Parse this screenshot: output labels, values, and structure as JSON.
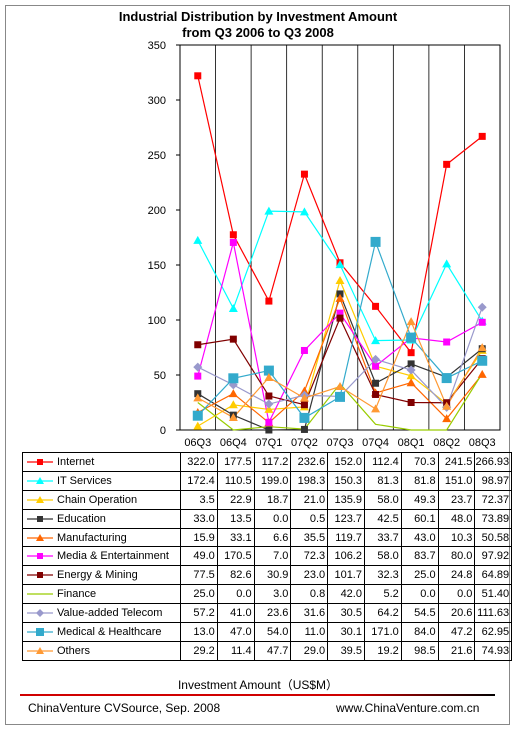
{
  "chart_data": {
    "type": "line",
    "title_line1": "Industrial Distribution by Investment Amount",
    "title_line2": "from Q3 2006 to Q3 2008",
    "categories": [
      "06Q3",
      "06Q4",
      "07Q1",
      "07Q2",
      "07Q3",
      "07Q4",
      "08Q1",
      "08Q2",
      "08Q3"
    ],
    "ylim": [
      0,
      350
    ],
    "yticks": [
      "0",
      "50",
      "100",
      "150",
      "200",
      "250",
      "300",
      "350"
    ],
    "xlabel": "Investment Amount（US$M）",
    "grid": "vertical",
    "legend": "data-table",
    "series": [
      {
        "name": "Internet",
        "color": "#ff0000",
        "marker": "square",
        "values": [
          322.0,
          177.5,
          117.2,
          232.6,
          152.0,
          112.4,
          70.3,
          241.5,
          266.93
        ],
        "labels": [
          "322.0",
          "177.5",
          "117.2",
          "232.6",
          "152.0",
          "112.4",
          "70.3",
          "241.5",
          "266.93"
        ]
      },
      {
        "name": "IT Services",
        "color": "#00ffff",
        "marker": "triangle",
        "values": [
          172.4,
          110.5,
          199.0,
          198.3,
          150.3,
          81.3,
          81.8,
          151.0,
          98.97
        ],
        "labels": [
          "172.4",
          "110.5",
          "199.0",
          "198.3",
          "150.3",
          "81.3",
          "81.8",
          "151.0",
          "98.97"
        ]
      },
      {
        "name": "Chain Operation",
        "color": "#ffcc00",
        "marker": "triangle",
        "values": [
          3.5,
          22.9,
          18.7,
          21.0,
          135.9,
          58.0,
          49.3,
          23.7,
          72.37
        ],
        "labels": [
          "3.5",
          "22.9",
          "18.7",
          "21.0",
          "135.9",
          "58.0",
          "49.3",
          "23.7",
          "72.37"
        ]
      },
      {
        "name": "Education",
        "color": "#333333",
        "marker": "square",
        "values": [
          33.0,
          13.5,
          0.0,
          0.5,
          123.7,
          42.5,
          60.1,
          48.0,
          73.89
        ],
        "labels": [
          "33.0",
          "13.5",
          "0.0",
          "0.5",
          "123.7",
          "42.5",
          "60.1",
          "48.0",
          "73.89"
        ]
      },
      {
        "name": "Manufacturing",
        "color": "#ff6600",
        "marker": "triangle",
        "values": [
          15.9,
          33.1,
          6.6,
          35.5,
          119.7,
          33.7,
          43.0,
          10.3,
          50.58
        ],
        "labels": [
          "15.9",
          "33.1",
          "6.6",
          "35.5",
          "119.7",
          "33.7",
          "43.0",
          "10.3",
          "50.58"
        ]
      },
      {
        "name": "Media & Entertainment",
        "color": "#ff00ff",
        "marker": "square",
        "values": [
          49.0,
          170.5,
          7.0,
          72.3,
          106.2,
          58.0,
          83.7,
          80.0,
          97.92
        ],
        "labels": [
          "49.0",
          "170.5",
          "7.0",
          "72.3",
          "106.2",
          "58.0",
          "83.7",
          "80.0",
          "97.92"
        ]
      },
      {
        "name": "Energy & Mining",
        "color": "#800000",
        "marker": "square",
        "values": [
          77.5,
          82.6,
          30.9,
          23.0,
          101.7,
          32.3,
          25.0,
          24.8,
          64.89
        ],
        "labels": [
          "77.5",
          "82.6",
          "30.9",
          "23.0",
          "101.7",
          "32.3",
          "25.0",
          "24.8",
          "64.89"
        ]
      },
      {
        "name": "Finance",
        "color": "#99cc00",
        "marker": "none",
        "values": [
          25.0,
          0.0,
          3.0,
          0.8,
          42.0,
          5.2,
          0.0,
          0.0,
          51.4
        ],
        "labels": [
          "25.0",
          "0.0",
          "3.0",
          "0.8",
          "42.0",
          "5.2",
          "0.0",
          "0.0",
          "51.40"
        ]
      },
      {
        "name": "Value-added Telecom",
        "color": "#9999cc",
        "marker": "diamond",
        "values": [
          57.2,
          41.0,
          23.6,
          31.6,
          30.5,
          64.2,
          54.5,
          20.6,
          111.63
        ],
        "labels": [
          "57.2",
          "41.0",
          "23.6",
          "31.6",
          "30.5",
          "64.2",
          "54.5",
          "20.6",
          "111.63"
        ]
      },
      {
        "name": "Medical & Healthcare",
        "color": "#33aacc",
        "marker": "bigsquare",
        "values": [
          13.0,
          47.0,
          54.0,
          11.0,
          30.1,
          171.0,
          84.0,
          47.2,
          62.95
        ],
        "labels": [
          "13.0",
          "47.0",
          "54.0",
          "11.0",
          "30.1",
          "171.0",
          "84.0",
          "47.2",
          "62.95"
        ]
      },
      {
        "name": "Others",
        "color": "#ff9933",
        "marker": "triangle",
        "values": [
          29.2,
          11.4,
          47.7,
          29.0,
          39.5,
          19.2,
          98.5,
          21.6,
          74.93
        ],
        "labels": [
          "29.2",
          "11.4",
          "47.7",
          "29.0",
          "39.5",
          "19.2",
          "98.5",
          "21.6",
          "74.93"
        ]
      }
    ]
  },
  "footer": {
    "source": "ChinaVenture CVSource, Sep. 2008",
    "website": "www.ChinaVenture.com.cn"
  }
}
